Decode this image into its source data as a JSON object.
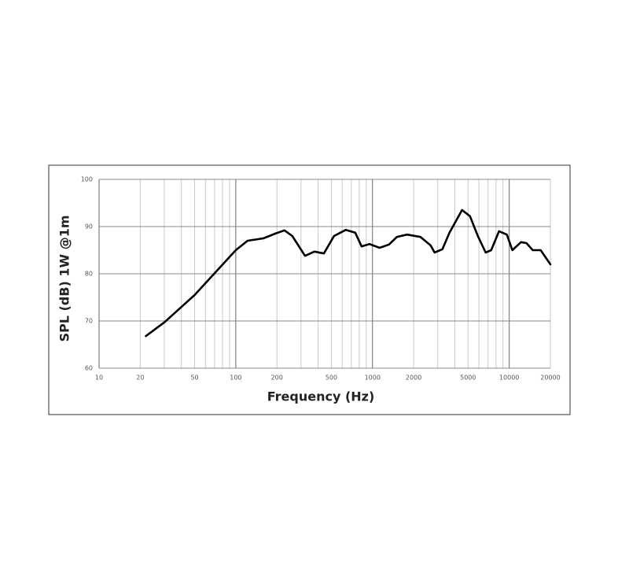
{
  "chart_data": {
    "type": "line",
    "xlabel": "Frequency (Hz)",
    "ylabel": "SPL (dB) 1W @1m",
    "log_x": true,
    "xlim": [
      10,
      20000
    ],
    "ylim": [
      60,
      100
    ],
    "xticks": [
      10,
      20,
      50,
      100,
      200,
      500,
      1000,
      2000,
      5000,
      10000,
      20000
    ],
    "x_minor_grid": [
      30,
      40,
      60,
      70,
      80,
      90,
      300,
      400,
      600,
      700,
      800,
      900,
      3000,
      4000,
      6000,
      7000,
      8000,
      9000
    ],
    "yticks": [
      60,
      70,
      80,
      90,
      100
    ],
    "grid": true,
    "color": "#000000",
    "x": [
      22,
      30,
      50,
      72,
      100,
      122,
      159,
      194,
      227,
      259,
      321,
      376,
      441,
      523,
      638,
      748,
      832,
      949,
      1127,
      1321,
      1508,
      1791,
      2244,
      2663,
      2846,
      3247,
      3656,
      4518,
      5164,
      5894,
      6726,
      7380,
      8420,
      9610,
      10540,
      12190,
      13370,
      14860,
      16980,
      20000
    ],
    "values": [
      66.8,
      69.7,
      75.5,
      80.5,
      85,
      87,
      87.5,
      88.5,
      89.2,
      88,
      83.8,
      84.7,
      84.3,
      88,
      89.3,
      88.7,
      85.8,
      86.3,
      85.5,
      86.2,
      87.8,
      88.3,
      87.8,
      86,
      84.5,
      85.2,
      88.7,
      93.5,
      92.2,
      88,
      84.5,
      85,
      89,
      88.3,
      85,
      86.7,
      86.5,
      85,
      85,
      82
    ]
  }
}
